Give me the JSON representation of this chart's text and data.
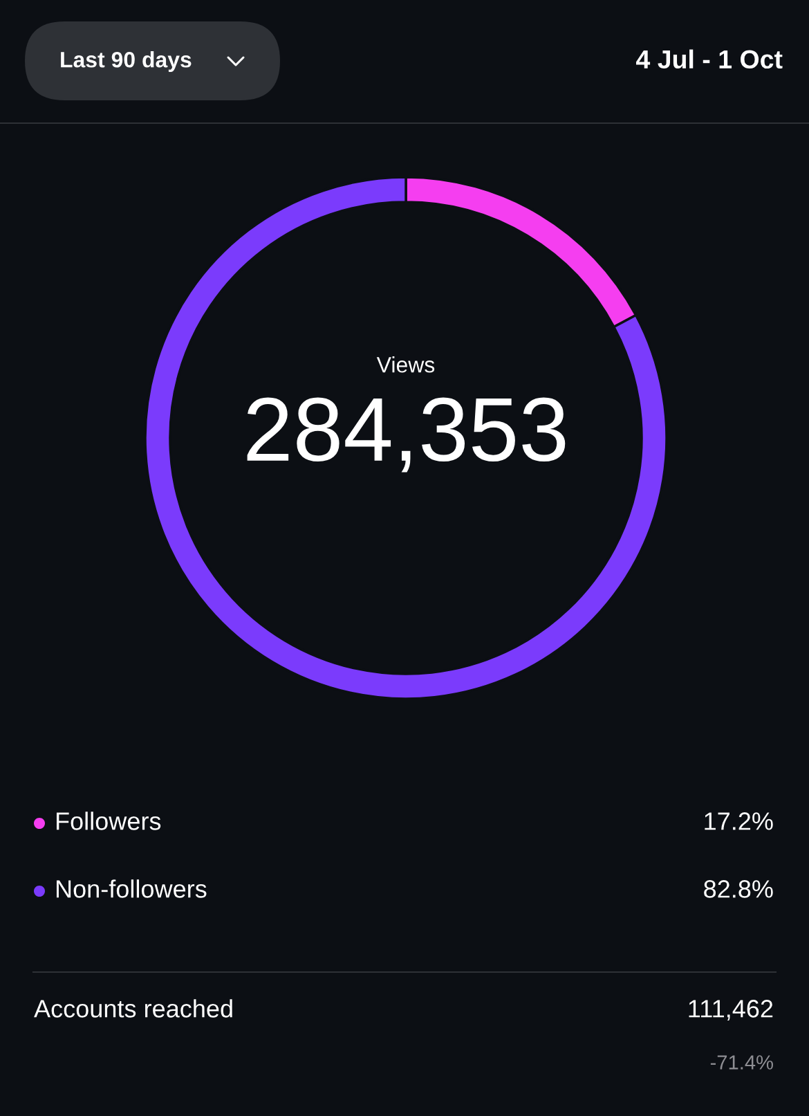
{
  "chart_data": {
    "type": "donut",
    "title": "Views",
    "categories": [
      "Followers",
      "Non-followers"
    ],
    "values": [
      17.2,
      82.8
    ],
    "colors": [
      "#f53ef0",
      "#7b3bfc"
    ],
    "value_labels": [
      "17.2%",
      "82.8%"
    ],
    "legend": "bottom",
    "annotations": [
      "Last 90 days",
      "4 Jul - 1 Oct",
      "284,353",
      "Accounts reached",
      "111,462",
      "-71.4%"
    ]
  }
}
